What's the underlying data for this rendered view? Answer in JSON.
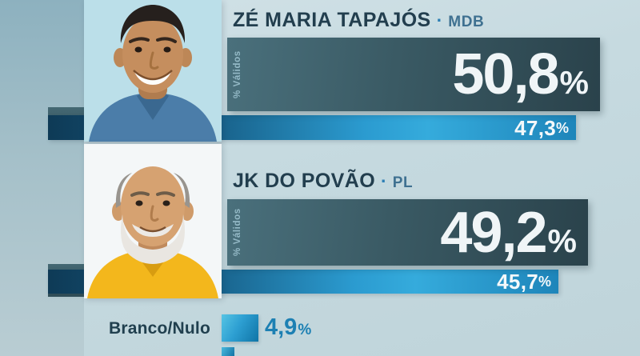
{
  "meta": {
    "percent_sign": "%",
    "valid_label": "% Válidos"
  },
  "candidates": [
    {
      "name": "ZÉ MARIA TAPAJÓS",
      "separator": "·",
      "party": "MDB",
      "valid_value": "50,8",
      "total_value": "47,3"
    },
    {
      "name": "JK DO POVÃO",
      "separator": "·",
      "party": "PL",
      "valid_value": "49,2",
      "total_value": "45,7"
    }
  ],
  "others_row": {
    "label": "Branco/Nulo",
    "value": "4,9"
  },
  "colors": {
    "dark_bar_left": "#4a707c",
    "dark_bar_right": "#2a424b",
    "total_bar_bright": "#35abdc",
    "total_bar_dark": "#0e3a56",
    "name_text": "#223e4e",
    "party_text": "#3f7191",
    "value_text_blue": "#1d80b3",
    "background_left": "#8db1bf",
    "background_right": "#c6dae0"
  },
  "chart_data": {
    "type": "bar",
    "title": "",
    "categories": [
      "ZÉ MARIA TAPAJÓS (MDB)",
      "JK DO POVÃO (PL)",
      "Branco/Nulo"
    ],
    "series": [
      {
        "name": "% Válidos",
        "values": [
          50.8,
          49.2,
          null
        ]
      },
      {
        "name": "",
        "values": [
          47.3,
          45.7,
          4.9
        ]
      }
    ],
    "unit": "%",
    "legend_position": "none",
    "grid": false,
    "orientation": "horizontal",
    "annotations": [
      "fourth row partially cut off at the bottom edge of the frame"
    ]
  }
}
